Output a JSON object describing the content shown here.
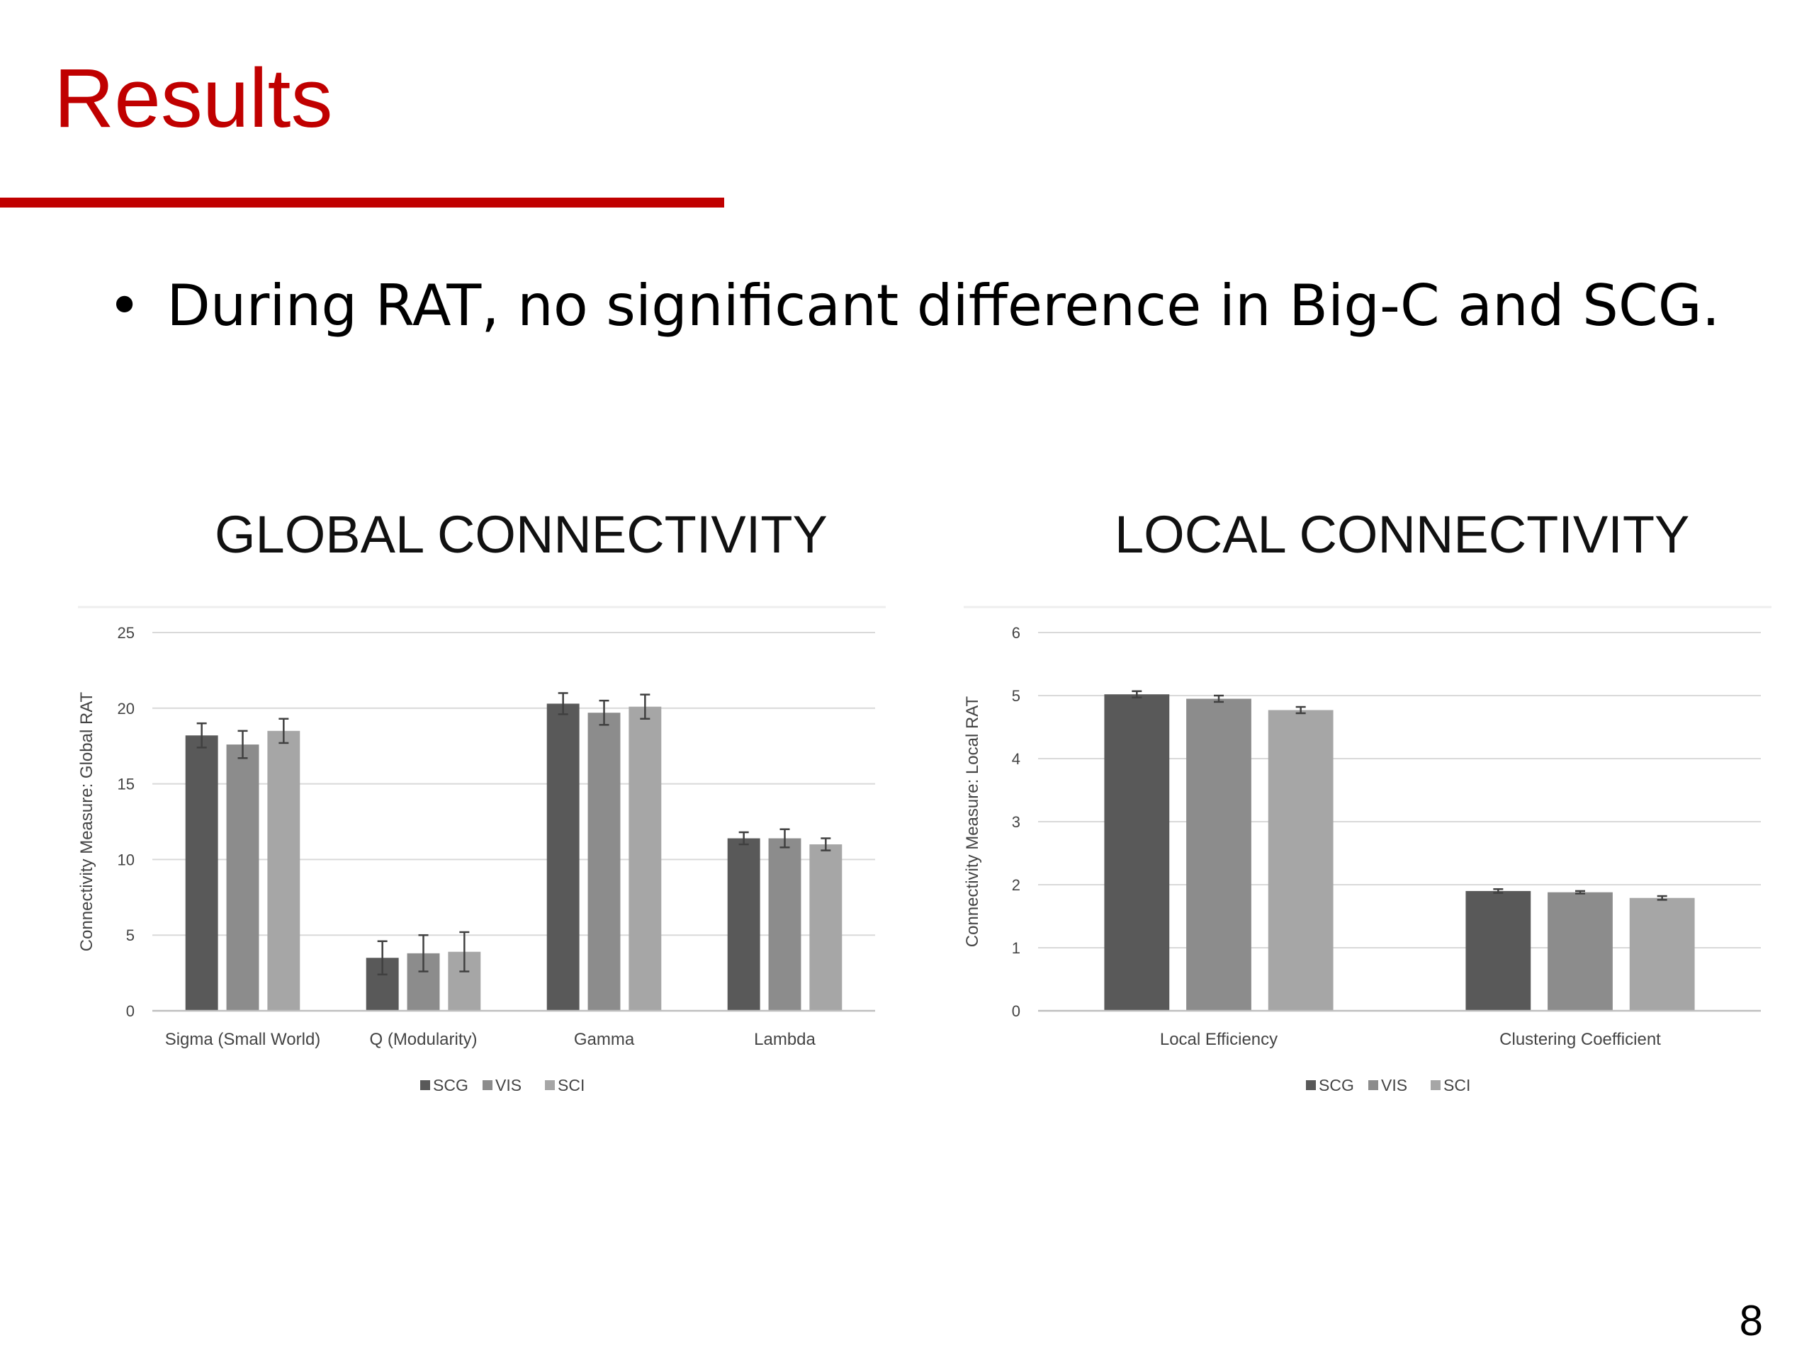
{
  "slide": {
    "title": "Results",
    "bullet_marker": "•",
    "bullet": "During RAT, no significant difference in Big-C and SCG.",
    "page_number": "8"
  },
  "colors": {
    "title": "#c00000",
    "rule": "#c00000",
    "SCG": "#595959",
    "VIS": "#8c8c8c",
    "SCI": "#a6a6a6",
    "grid": "#d9d9d9",
    "error_bar": "#404040"
  },
  "chart_data": [
    {
      "type": "bar",
      "title": "GLOBAL CONNECTIVITY",
      "ylabel": "Connectivity Measure: Global RAT",
      "xlabel": "",
      "ylim": [
        0,
        25
      ],
      "yticks": [
        0,
        5,
        10,
        15,
        20,
        25
      ],
      "grid": true,
      "legend_position": "bottom",
      "categories": [
        "Sigma (Small World)",
        "Q (Modularity)",
        "Gamma",
        "Lambda"
      ],
      "series": [
        {
          "name": "SCG",
          "values": [
            18.2,
            3.5,
            20.3,
            11.4
          ],
          "errors": [
            0.8,
            1.1,
            0.7,
            0.4
          ]
        },
        {
          "name": "VIS",
          "values": [
            17.6,
            3.8,
            19.7,
            11.4
          ],
          "errors": [
            0.9,
            1.2,
            0.8,
            0.6
          ]
        },
        {
          "name": "SCI",
          "values": [
            18.5,
            3.9,
            20.1,
            11.0
          ],
          "errors": [
            0.8,
            1.3,
            0.8,
            0.4
          ]
        }
      ]
    },
    {
      "type": "bar",
      "title": "LOCAL CONNECTIVITY",
      "ylabel": "Connectivity Measure:  Local RAT",
      "xlabel": "",
      "ylim": [
        0,
        6
      ],
      "yticks": [
        0,
        1,
        2,
        3,
        4,
        5,
        6
      ],
      "grid": true,
      "legend_position": "bottom",
      "categories": [
        "Local Efficiency",
        "Clustering Coefficient"
      ],
      "series": [
        {
          "name": "SCG",
          "values": [
            5.02,
            1.9
          ],
          "errors": [
            0.05,
            0.03
          ]
        },
        {
          "name": "VIS",
          "values": [
            4.95,
            1.88
          ],
          "errors": [
            0.05,
            0.02
          ]
        },
        {
          "name": "SCI",
          "values": [
            4.77,
            1.79
          ],
          "errors": [
            0.05,
            0.03
          ]
        }
      ]
    }
  ]
}
